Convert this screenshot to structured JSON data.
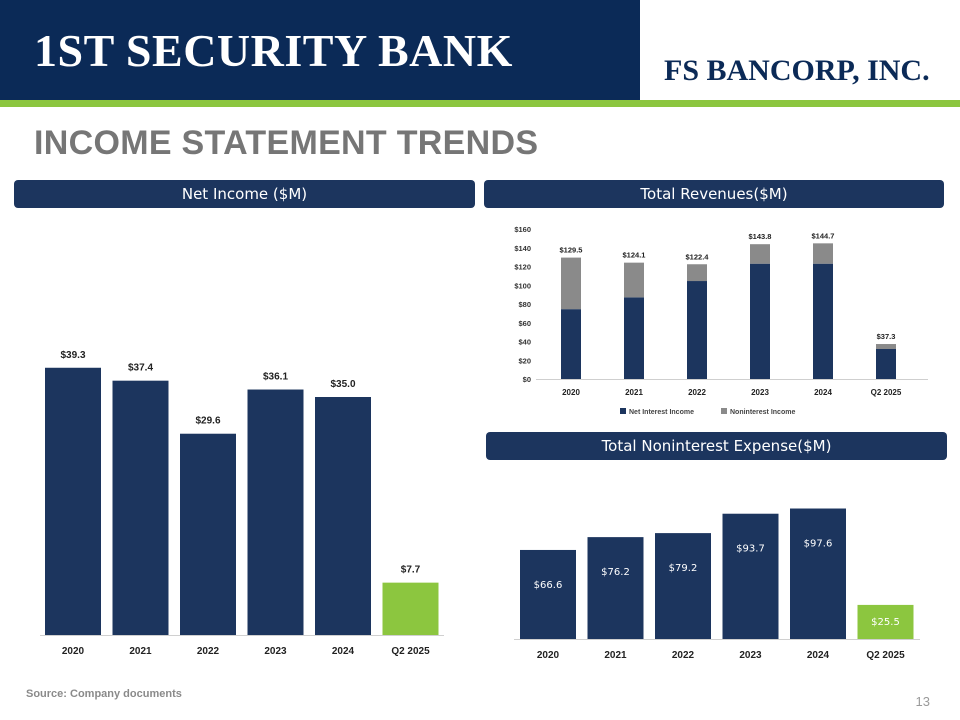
{
  "header": {
    "bank_logo": "1ST SECURITY BANK",
    "corp_logo": "FS BANCORP, INC."
  },
  "title": "INCOME STATEMENT TRENDS",
  "panels": {
    "net_income": "Net Income ($M)",
    "total_revenues": "Total Revenues($M)",
    "noninterest_expense": "Total Noninterest Expense($M)"
  },
  "footer": {
    "source": "Source: Company documents",
    "page_number": "13"
  },
  "colors": {
    "navy": "#1c355e",
    "green": "#8cc63f",
    "gray": "#8a8a8a",
    "header_navy": "#0b2a57"
  },
  "chart_data": [
    {
      "type": "bar",
      "title": "Net Income ($M)",
      "categories": [
        "2020",
        "2021",
        "2022",
        "2023",
        "2024",
        "Q2 2025"
      ],
      "values": [
        39.3,
        37.4,
        29.6,
        36.1,
        35.0,
        7.7
      ],
      "labels": [
        "$39.3",
        "$37.4",
        "$29.6",
        "$36.1",
        "$35.0",
        "$7.7"
      ],
      "highlight": "Q2 2025",
      "grid": false,
      "axis_visible": false
    },
    {
      "type": "bar",
      "stacked": true,
      "title": "Total Revenues($M)",
      "categories": [
        "2020",
        "2021",
        "2022",
        "2023",
        "2024",
        "Q2 2025"
      ],
      "series": [
        {
          "name": "Net Interest Income",
          "values": [
            74.5,
            87.1,
            104.5,
            123.0,
            123.0,
            32.0
          ]
        },
        {
          "name": "Noninterest Income",
          "values": [
            55.0,
            37.0,
            17.9,
            20.8,
            21.7,
            5.3
          ]
        }
      ],
      "totals": [
        "$129.5",
        "$124.1",
        "$122.4",
        "$143.8",
        "$144.7",
        "$37.3"
      ],
      "yticks": [
        "$0",
        "$20",
        "$40",
        "$60",
        "$80",
        "$100",
        "$120",
        "$140",
        "$160"
      ],
      "ylim": [
        0,
        160
      ],
      "legend": "bottom"
    },
    {
      "type": "bar",
      "title": "Total Noninterest Expense($M)",
      "categories": [
        "2020",
        "2021",
        "2022",
        "2023",
        "2024",
        "Q2 2025"
      ],
      "values": [
        66.6,
        76.2,
        79.2,
        93.7,
        97.6,
        25.5
      ],
      "labels": [
        "$66.6",
        "$76.2",
        "$79.2",
        "$93.7",
        "$97.6",
        "$25.5"
      ],
      "highlight": "Q2 2025",
      "grid": false,
      "axis_visible": false
    }
  ]
}
